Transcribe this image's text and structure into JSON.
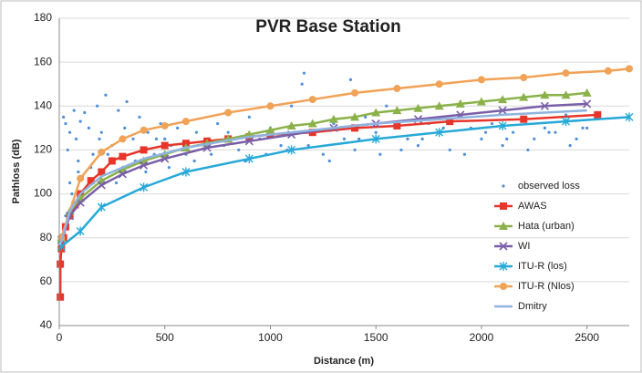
{
  "chart_data": {
    "type": "line",
    "title": "PVR Base Station",
    "x_label": "Distance (m)",
    "y_label": "Pathloss (dB)",
    "xlim": [
      0,
      2700
    ],
    "ylim": [
      40,
      180
    ],
    "xticks": [
      0,
      500,
      1000,
      1500,
      2000,
      2500
    ],
    "yticks": [
      40,
      60,
      80,
      100,
      120,
      140,
      160,
      180
    ],
    "grid": true,
    "legend": "lower right",
    "series": [
      {
        "name": "observed loss",
        "color": "#4f8fd6",
        "marker": "dot",
        "line": false,
        "x": [
          20,
          30,
          40,
          50,
          60,
          70,
          80,
          90,
          100,
          120,
          140,
          160,
          180,
          200,
          220,
          250,
          280,
          300,
          320,
          350,
          380,
          400,
          420,
          450,
          480,
          500,
          530,
          560,
          600,
          650,
          700,
          750,
          800,
          850,
          900,
          950,
          1000,
          1050,
          1100,
          1150,
          1160,
          1200,
          1250,
          1300,
          1350,
          1380,
          1400,
          1450,
          1500,
          1550,
          1600,
          1650,
          1700,
          1750,
          1800,
          1850,
          1900,
          1950,
          2000,
          2050,
          2100,
          2150,
          2200,
          2250,
          2300,
          2350,
          2400,
          2450,
          2500,
          30,
          50,
          70,
          90,
          110,
          150,
          190,
          230,
          270,
          310,
          360,
          410,
          460,
          520,
          580,
          640,
          720,
          780,
          880,
          980,
          1080,
          1180,
          1280,
          1420,
          1520,
          1620,
          1720,
          1820,
          1920,
          2020,
          2120,
          2220,
          2320,
          2420,
          2480
        ],
        "values": [
          135,
          132,
          120,
          128,
          100,
          138,
          125,
          110,
          133,
          137,
          130,
          118,
          140,
          128,
          145,
          122,
          138,
          112,
          142,
          125,
          135,
          120,
          128,
          118,
          132,
          125,
          122,
          130,
          118,
          128,
          125,
          132,
          128,
          120,
          135,
          125,
          130,
          122,
          140,
          150,
          155,
          128,
          118,
          132,
          125,
          152,
          120,
          135,
          128,
          140,
          138,
          125,
          122,
          132,
          128,
          120,
          135,
          130,
          125,
          132,
          122,
          128,
          135,
          125,
          130,
          128,
          136,
          125,
          130,
          90,
          105,
          95,
          115,
          108,
          112,
          125,
          118,
          105,
          130,
          115,
          110,
          125,
          112,
          120,
          115,
          118,
          122,
          115,
          118,
          120,
          122,
          115,
          125,
          118,
          120,
          125,
          130,
          118,
          128,
          125,
          120,
          128,
          122,
          130
        ]
      },
      {
        "name": "AWAS",
        "color": "#e8352a",
        "marker": "square",
        "line": true,
        "x": [
          5,
          5,
          10,
          20,
          30,
          50,
          75,
          100,
          150,
          200,
          250,
          300,
          400,
          500,
          600,
          700,
          800,
          900,
          1000,
          1200,
          1400,
          1600,
          1850,
          2200,
          2550
        ],
        "values": [
          53,
          68,
          75,
          80,
          85,
          90,
          95,
          100,
          106,
          110,
          115,
          117,
          120,
          122,
          123,
          124,
          125,
          126,
          127,
          128,
          130,
          131,
          133,
          134,
          136
        ]
      },
      {
        "name": "Hata (urban)",
        "color": "#8bb24a",
        "marker": "triangle",
        "line": true,
        "x": [
          10,
          50,
          100,
          200,
          300,
          400,
          500,
          600,
          700,
          800,
          900,
          1000,
          1100,
          1200,
          1300,
          1400,
          1500,
          1600,
          1700,
          1800,
          1900,
          2000,
          2100,
          2200,
          2300,
          2400,
          2500
        ],
        "values": [
          80,
          92,
          98,
          106,
          111,
          115,
          118,
          121,
          123,
          125,
          127,
          129,
          131,
          132,
          134,
          135,
          137,
          138,
          139,
          140,
          141,
          142,
          143,
          144,
          145,
          145,
          146
        ]
      },
      {
        "name": "WI",
        "color": "#7a5fa8",
        "marker": "x",
        "line": true,
        "x": [
          10,
          50,
          100,
          200,
          300,
          400,
          500,
          700,
          900,
          1100,
          1300,
          1500,
          1700,
          1900,
          2100,
          2300,
          2500
        ],
        "values": [
          79,
          90,
          96,
          104,
          109,
          113,
          116,
          121,
          124,
          127,
          130,
          132,
          134,
          136,
          138,
          140,
          141
        ]
      },
      {
        "name": "ITU-R (los)",
        "color": "#27a9d8",
        "marker": "star",
        "line": true,
        "x": [
          10,
          100,
          200,
          400,
          600,
          900,
          1100,
          1500,
          1800,
          2100,
          2400,
          2700
        ],
        "values": [
          76,
          83,
          94,
          103,
          110,
          116,
          120,
          125,
          128,
          131,
          133,
          135
        ]
      },
      {
        "name": "ITU-R (Nlos)",
        "color": "#f0a257",
        "marker": "circle",
        "line": true,
        "x": [
          10,
          100,
          200,
          300,
          400,
          500,
          600,
          800,
          1000,
          1200,
          1400,
          1600,
          1800,
          2000,
          2200,
          2400,
          2600,
          2700
        ],
        "values": [
          80,
          107,
          119,
          125,
          129,
          131,
          133,
          137,
          140,
          143,
          146,
          148,
          150,
          152,
          153,
          155,
          156,
          157
        ]
      },
      {
        "name": "Dmitry",
        "color": "#8fb3df",
        "marker": "none",
        "line": true,
        "x": [
          10,
          50,
          100,
          200,
          400,
          600,
          900,
          1200,
          1500,
          1800,
          2100,
          2500
        ],
        "values": [
          78,
          92,
          100,
          108,
          116,
          121,
          126,
          129,
          132,
          134,
          136,
          138
        ]
      }
    ]
  }
}
